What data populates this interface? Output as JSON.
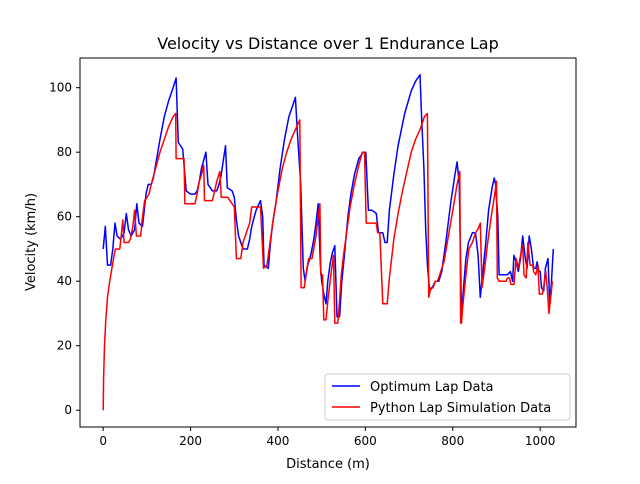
{
  "chart_data": {
    "type": "line",
    "title": "Velocity vs Distance over 1 Endurance Lap",
    "xlabel": "Distance (m)",
    "ylabel": "Velocity (km/h)",
    "xlim": [
      -53,
      1082
    ],
    "ylim": [
      -5.2,
      109.2
    ],
    "xticks": [
      0,
      200,
      400,
      600,
      800,
      1000
    ],
    "yticks": [
      0,
      20,
      40,
      60,
      80,
      100
    ],
    "grid": false,
    "legend_position": "lower-right",
    "series": [
      {
        "name": "Optimum Lap Data",
        "color": "#0000ff",
        "points": [
          [
            0,
            50
          ],
          [
            5,
            57
          ],
          [
            10,
            45
          ],
          [
            17,
            45
          ],
          [
            22,
            50
          ],
          [
            27,
            58
          ],
          [
            32,
            54
          ],
          [
            40,
            53
          ],
          [
            48,
            55
          ],
          [
            53,
            61
          ],
          [
            58,
            56
          ],
          [
            64,
            54
          ],
          [
            72,
            56
          ],
          [
            77,
            64
          ],
          [
            82,
            58
          ],
          [
            90,
            57
          ],
          [
            98,
            67
          ],
          [
            103,
            70
          ],
          [
            110,
            70
          ],
          [
            115,
            72
          ],
          [
            120,
            76
          ],
          [
            130,
            84
          ],
          [
            140,
            91
          ],
          [
            150,
            96
          ],
          [
            160,
            100
          ],
          [
            167,
            103
          ],
          [
            172,
            83
          ],
          [
            182,
            81
          ],
          [
            190,
            68
          ],
          [
            200,
            67
          ],
          [
            210,
            67
          ],
          [
            215,
            68
          ],
          [
            220,
            71
          ],
          [
            225,
            75
          ],
          [
            235,
            80
          ],
          [
            240,
            70
          ],
          [
            250,
            68
          ],
          [
            260,
            68
          ],
          [
            265,
            70
          ],
          [
            270,
            73
          ],
          [
            280,
            82
          ],
          [
            284,
            69
          ],
          [
            295,
            68
          ],
          [
            300,
            66
          ],
          [
            305,
            59
          ],
          [
            310,
            54
          ],
          [
            320,
            50
          ],
          [
            330,
            50
          ],
          [
            335,
            53
          ],
          [
            340,
            57
          ],
          [
            350,
            62
          ],
          [
            360,
            65
          ],
          [
            365,
            60
          ],
          [
            368,
            45
          ],
          [
            378,
            44
          ],
          [
            383,
            52
          ],
          [
            388,
            58
          ],
          [
            395,
            64
          ],
          [
            405,
            75
          ],
          [
            415,
            84
          ],
          [
            425,
            91
          ],
          [
            435,
            95
          ],
          [
            440,
            97
          ],
          [
            445,
            85
          ],
          [
            452,
            70
          ],
          [
            458,
            44
          ],
          [
            462,
            40
          ],
          [
            468,
            45
          ],
          [
            475,
            48
          ],
          [
            482,
            53
          ],
          [
            487,
            58
          ],
          [
            492,
            64
          ],
          [
            497,
            45
          ],
          [
            500,
            40
          ],
          [
            505,
            36
          ],
          [
            510,
            33
          ],
          [
            514,
            40
          ],
          [
            520,
            46
          ],
          [
            525,
            49
          ],
          [
            530,
            51
          ],
          [
            535,
            29
          ],
          [
            541,
            29
          ],
          [
            546,
            40
          ],
          [
            552,
            48
          ],
          [
            560,
            60
          ],
          [
            567,
            67
          ],
          [
            575,
            73
          ],
          [
            585,
            78
          ],
          [
            595,
            80
          ],
          [
            601,
            80
          ],
          [
            605,
            68
          ],
          [
            607,
            62
          ],
          [
            615,
            62
          ],
          [
            625,
            61
          ],
          [
            630,
            55
          ],
          [
            640,
            55
          ],
          [
            645,
            52
          ],
          [
            650,
            52
          ],
          [
            655,
            62
          ],
          [
            665,
            73
          ],
          [
            675,
            82
          ],
          [
            690,
            92
          ],
          [
            705,
            99
          ],
          [
            715,
            102
          ],
          [
            725,
            104
          ],
          [
            729,
            90
          ],
          [
            734,
            75
          ],
          [
            738,
            56
          ],
          [
            742,
            45
          ],
          [
            747,
            37
          ],
          [
            753,
            38
          ],
          [
            760,
            40
          ],
          [
            768,
            40
          ],
          [
            775,
            43
          ],
          [
            785,
            53
          ],
          [
            795,
            64
          ],
          [
            805,
            73
          ],
          [
            810,
            77
          ],
          [
            815,
            70
          ],
          [
            820,
            29
          ],
          [
            824,
            37
          ],
          [
            830,
            47
          ],
          [
            836,
            52
          ],
          [
            845,
            55
          ],
          [
            852,
            55
          ],
          [
            858,
            48
          ],
          [
            863,
            35
          ],
          [
            868,
            42
          ],
          [
            875,
            51
          ],
          [
            882,
            62
          ],
          [
            890,
            69
          ],
          [
            895,
            72
          ],
          [
            898,
            70
          ],
          [
            903,
            60
          ],
          [
            906,
            42
          ],
          [
            915,
            42
          ],
          [
            925,
            42
          ],
          [
            932,
            43
          ],
          [
            937,
            40
          ],
          [
            940,
            48
          ],
          [
            945,
            46
          ],
          [
            950,
            43
          ],
          [
            955,
            47
          ],
          [
            960,
            54
          ],
          [
            966,
            47
          ],
          [
            970,
            44
          ],
          [
            975,
            54
          ],
          [
            980,
            50
          ],
          [
            985,
            44
          ],
          [
            990,
            44
          ],
          [
            993,
            46
          ],
          [
            997,
            43
          ],
          [
            1000,
            43
          ],
          [
            1003,
            38
          ],
          [
            1008,
            37
          ],
          [
            1012,
            44
          ],
          [
            1018,
            47
          ],
          [
            1022,
            33
          ],
          [
            1026,
            40
          ],
          [
            1030,
            50
          ]
        ]
      },
      {
        "name": "Python Lap Simulation Data",
        "color": "#ff0000",
        "points": [
          [
            0,
            0
          ],
          [
            1,
            10
          ],
          [
            3,
            20
          ],
          [
            6,
            28
          ],
          [
            10,
            35
          ],
          [
            15,
            40
          ],
          [
            20,
            44
          ],
          [
            25,
            48
          ],
          [
            28,
            50
          ],
          [
            38,
            50
          ],
          [
            42,
            55
          ],
          [
            45,
            59
          ],
          [
            48,
            52
          ],
          [
            58,
            52
          ],
          [
            62,
            53
          ],
          [
            68,
            57
          ],
          [
            72,
            62
          ],
          [
            76,
            54
          ],
          [
            86,
            54
          ],
          [
            90,
            60
          ],
          [
            95,
            65
          ],
          [
            100,
            66
          ],
          [
            105,
            67
          ],
          [
            110,
            70
          ],
          [
            120,
            75
          ],
          [
            130,
            80
          ],
          [
            140,
            84
          ],
          [
            150,
            88
          ],
          [
            160,
            91
          ],
          [
            166,
            92
          ],
          [
            167,
            78
          ],
          [
            185,
            78
          ],
          [
            187,
            64
          ],
          [
            210,
            64
          ],
          [
            215,
            67
          ],
          [
            220,
            71
          ],
          [
            225,
            73
          ],
          [
            230,
            76
          ],
          [
            232,
            65
          ],
          [
            250,
            65
          ],
          [
            255,
            68
          ],
          [
            260,
            71
          ],
          [
            267,
            74
          ],
          [
            270,
            66
          ],
          [
            285,
            66
          ],
          [
            290,
            65
          ],
          [
            300,
            63
          ],
          [
            305,
            47
          ],
          [
            315,
            47
          ],
          [
            320,
            52
          ],
          [
            330,
            56
          ],
          [
            335,
            58
          ],
          [
            340,
            63
          ],
          [
            352,
            63
          ],
          [
            360,
            63
          ],
          [
            367,
            44
          ],
          [
            375,
            45
          ],
          [
            380,
            50
          ],
          [
            390,
            60
          ],
          [
            400,
            68
          ],
          [
            410,
            75
          ],
          [
            420,
            80
          ],
          [
            430,
            84
          ],
          [
            440,
            87
          ],
          [
            450,
            90
          ],
          [
            453,
            38
          ],
          [
            460,
            38
          ],
          [
            465,
            43
          ],
          [
            470,
            47
          ],
          [
            478,
            47
          ],
          [
            487,
            54
          ],
          [
            492,
            60
          ],
          [
            496,
            64
          ],
          [
            498,
            42
          ],
          [
            502,
            42
          ],
          [
            505,
            28
          ],
          [
            510,
            28
          ],
          [
            515,
            35
          ],
          [
            522,
            43
          ],
          [
            527,
            48
          ],
          [
            530,
            27
          ],
          [
            537,
            27
          ],
          [
            540,
            32
          ],
          [
            545,
            42
          ],
          [
            550,
            48
          ],
          [
            557,
            55
          ],
          [
            565,
            63
          ],
          [
            575,
            70
          ],
          [
            585,
            76
          ],
          [
            593,
            80
          ],
          [
            598,
            80
          ],
          [
            602,
            58
          ],
          [
            618,
            58
          ],
          [
            625,
            58
          ],
          [
            628,
            55
          ],
          [
            633,
            55
          ],
          [
            640,
            33
          ],
          [
            650,
            33
          ],
          [
            655,
            41
          ],
          [
            665,
            53
          ],
          [
            675,
            61
          ],
          [
            685,
            68
          ],
          [
            695,
            74
          ],
          [
            705,
            80
          ],
          [
            715,
            84
          ],
          [
            725,
            87
          ],
          [
            735,
            91
          ],
          [
            742,
            92
          ],
          [
            745,
            35
          ],
          [
            750,
            38
          ],
          [
            755,
            38
          ],
          [
            760,
            40
          ],
          [
            765,
            40
          ],
          [
            770,
            42
          ],
          [
            775,
            44
          ],
          [
            780,
            46
          ],
          [
            790,
            54
          ],
          [
            800,
            62
          ],
          [
            810,
            70
          ],
          [
            816,
            74
          ],
          [
            818,
            27
          ],
          [
            820,
            27
          ],
          [
            822,
            31
          ],
          [
            830,
            42
          ],
          [
            837,
            50
          ],
          [
            845,
            52
          ],
          [
            852,
            55
          ],
          [
            857,
            56
          ],
          [
            863,
            58
          ],
          [
            867,
            38
          ],
          [
            873,
            44
          ],
          [
            880,
            52
          ],
          [
            888,
            60
          ],
          [
            895,
            66
          ],
          [
            900,
            71
          ],
          [
            902,
            41
          ],
          [
            906,
            40
          ],
          [
            915,
            40
          ],
          [
            922,
            40
          ],
          [
            925,
            41
          ],
          [
            930,
            41
          ],
          [
            933,
            39
          ],
          [
            940,
            39
          ],
          [
            945,
            47
          ],
          [
            950,
            44
          ],
          [
            955,
            48
          ],
          [
            960,
            51
          ],
          [
            963,
            42
          ],
          [
            968,
            41
          ],
          [
            970,
            47
          ],
          [
            972,
            52
          ],
          [
            977,
            45
          ],
          [
            983,
            45
          ],
          [
            985,
            43
          ],
          [
            990,
            42
          ],
          [
            995,
            45
          ],
          [
            998,
            36
          ],
          [
            1005,
            36
          ],
          [
            1010,
            40
          ],
          [
            1013,
            43
          ],
          [
            1016,
            38
          ],
          [
            1020,
            30
          ],
          [
            1025,
            36
          ],
          [
            1028,
            40
          ]
        ]
      }
    ]
  }
}
